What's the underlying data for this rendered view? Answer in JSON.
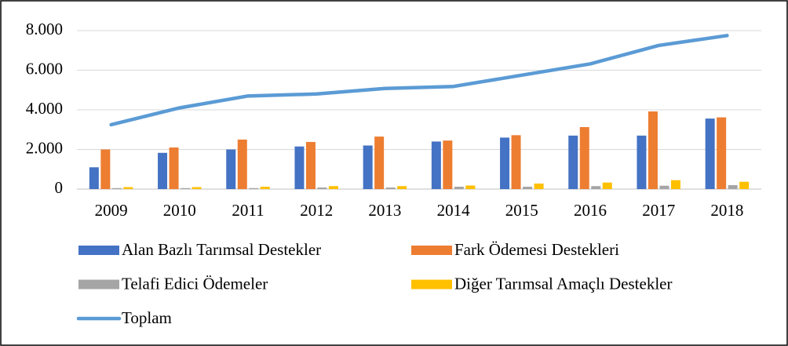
{
  "chart_data": {
    "type": "bar",
    "categories": [
      "2009",
      "2010",
      "2011",
      "2012",
      "2013",
      "2014",
      "2015",
      "2016",
      "2017",
      "2018"
    ],
    "series": [
      {
        "name": "Alan Bazlı Tarımsal Destekler",
        "type": "bar",
        "color": "#4472c4",
        "values": [
          1100,
          1830,
          2000,
          2150,
          2200,
          2400,
          2600,
          2700,
          2700,
          3560
        ]
      },
      {
        "name": "Fark Ödemesi Destekleri",
        "type": "bar",
        "color": "#ed7d31",
        "values": [
          2000,
          2100,
          2500,
          2380,
          2650,
          2450,
          2720,
          3130,
          3920,
          3620
        ]
      },
      {
        "name": "Telafi Edici Ödemeler",
        "type": "bar",
        "color": "#a5a5a5",
        "values": [
          50,
          50,
          50,
          80,
          80,
          120,
          120,
          150,
          170,
          200
        ]
      },
      {
        "name": "Diğer Tarımsal Amaçlı Destekler",
        "type": "bar",
        "color": "#ffc000",
        "values": [
          100,
          100,
          120,
          150,
          150,
          180,
          280,
          330,
          450,
          370
        ]
      },
      {
        "name": "Toplam",
        "type": "line",
        "color": "#5b9bd5",
        "values": [
          3250,
          4100,
          4700,
          4800,
          5080,
          5180,
          5750,
          6320,
          7250,
          7750
        ]
      }
    ],
    "ylim": [
      0,
      8000
    ],
    "yticks": [
      0,
      {
        "value": 2000,
        "label": "2.000"
      },
      {
        "value": 4000,
        "label": "4.000"
      },
      {
        "value": 6000,
        "label": "6.000"
      },
      {
        "value": 8000,
        "label": "8.000"
      }
    ],
    "grid": true
  }
}
